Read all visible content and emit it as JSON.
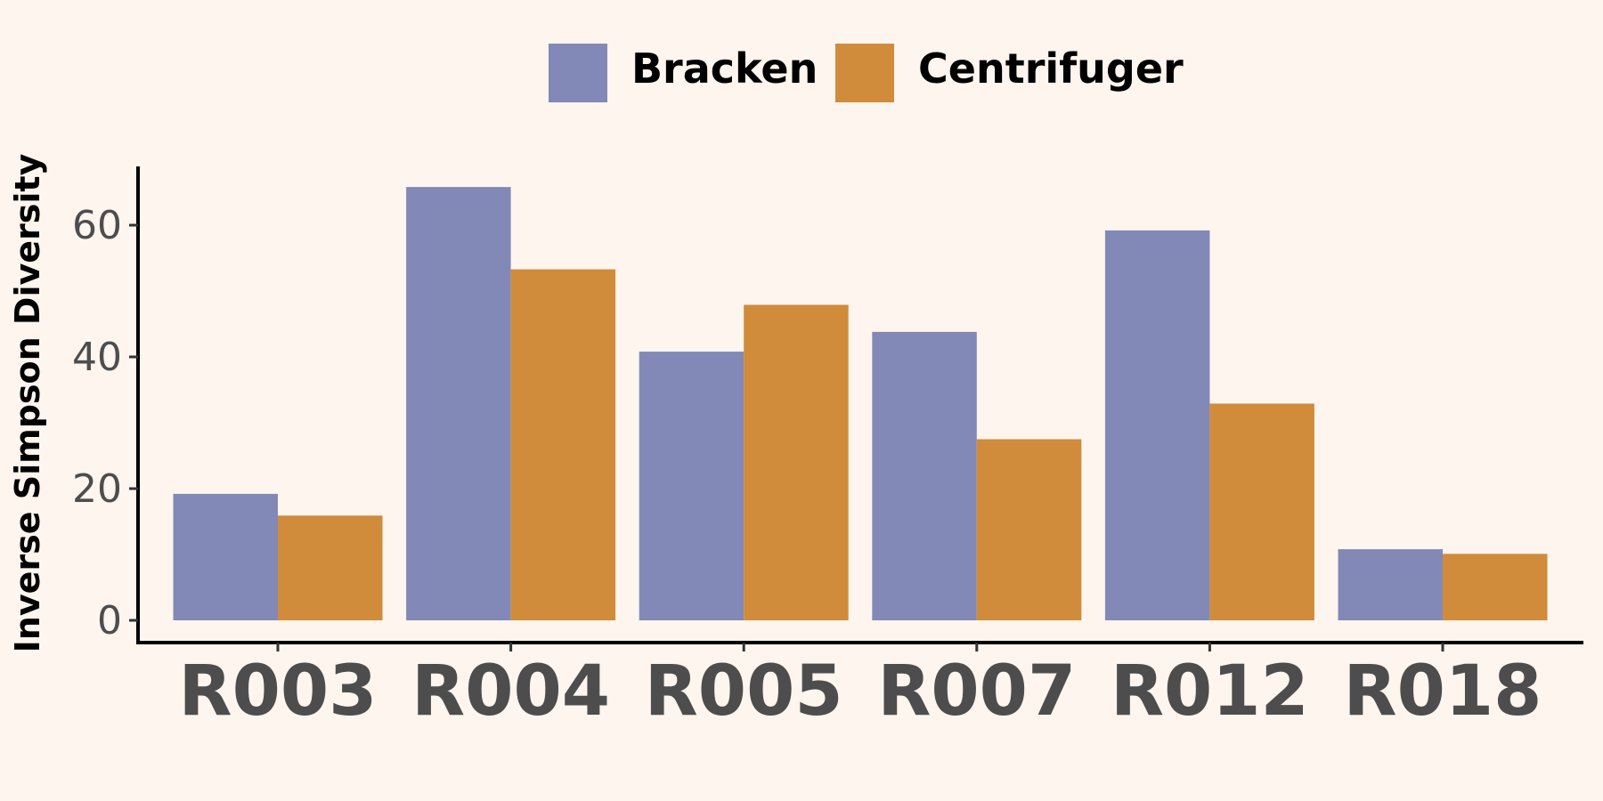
{
  "chart_data": {
    "type": "bar",
    "categories": [
      "R003",
      "R004",
      "R005",
      "R007",
      "R012",
      "R018"
    ],
    "series": [
      {
        "name": "Bracken",
        "values": [
          19.2,
          65.8,
          40.8,
          43.8,
          59.2,
          10.8
        ],
        "color": "#8389b6"
      },
      {
        "name": "Centrifuger",
        "values": [
          15.9,
          53.3,
          47.9,
          27.5,
          32.9,
          10.1
        ],
        "color": "#d08c3b"
      }
    ],
    "title": "",
    "xlabel": "",
    "ylabel": "Inverse Simpson Diversity",
    "ylim": [
      0,
      69
    ],
    "yticks": [
      0,
      20,
      40,
      60
    ],
    "grid": false,
    "legend_position": "top"
  }
}
